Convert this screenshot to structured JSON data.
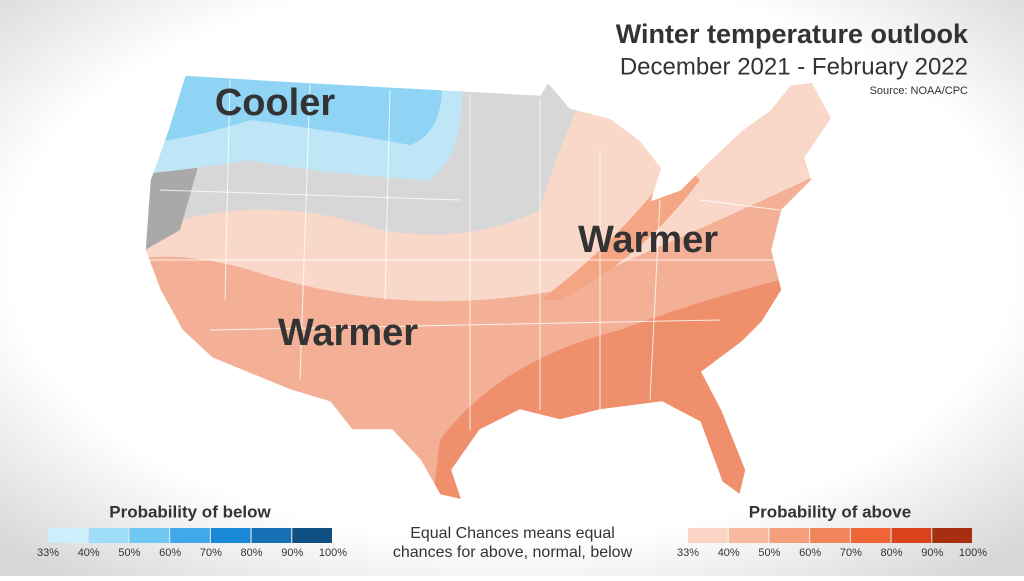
{
  "header": {
    "title": "Winter temperature outlook",
    "subtitle": "December 2021 - February 2022",
    "source": "Source: NOAA/CPC"
  },
  "map": {
    "labels": [
      "Cooler",
      "Warmer",
      "Warmer"
    ]
  },
  "legend_below": {
    "title": "Probability of below",
    "ticks": [
      "33%",
      "40%",
      "50%",
      "60%",
      "70%",
      "80%",
      "90%",
      "100%"
    ],
    "colors": [
      "#cdeefb",
      "#9fdcf7",
      "#6fc7f2",
      "#3fa9ec",
      "#1a8ad8",
      "#1670b3",
      "#0f4f82"
    ]
  },
  "legend_above": {
    "title": "Probability of above",
    "ticks": [
      "33%",
      "40%",
      "50%",
      "60%",
      "70%",
      "80%",
      "90%",
      "100%"
    ],
    "colors": [
      "#fad4c4",
      "#f7b9a0",
      "#f59f7d",
      "#f2845a",
      "#f06535",
      "#d9441f",
      "#a52f10"
    ]
  },
  "note": "Equal Chances means equal chances for above, normal, below"
}
